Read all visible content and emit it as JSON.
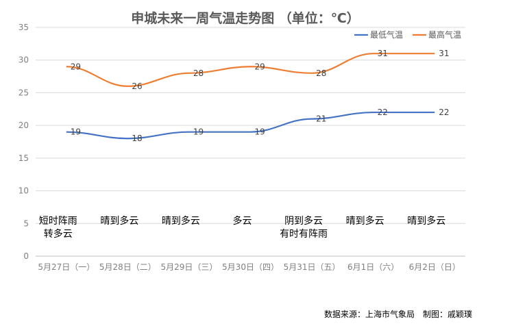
{
  "chart_data": {
    "type": "line",
    "title": "申城未来一周气温走势图 （单位：℃）",
    "categories": [
      "5月27日（一）",
      "5月28日（二）",
      "5月29日（三）",
      "5月30日（四）",
      "5月31日（五）",
      "6月1日（六）",
      "6月2日（日）"
    ],
    "ylim": [
      0,
      35
    ],
    "yticks": [
      0,
      5,
      10,
      15,
      20,
      25,
      30,
      35
    ],
    "grid": true,
    "legend_position": "top-right",
    "series": [
      {
        "name": "最低气温",
        "color": "#4472c4",
        "values": [
          19,
          18,
          19,
          19,
          21,
          22,
          22
        ]
      },
      {
        "name": "最高气温",
        "color": "#ed7d31",
        "values": [
          29,
          26,
          28,
          29,
          28,
          31,
          31
        ]
      }
    ],
    "weather": [
      [
        "短时阵雨",
        "转多云"
      ],
      [
        "晴到多云"
      ],
      [
        "晴到多云"
      ],
      [
        "多云"
      ],
      [
        "阴到多云",
        "有时有阵雨"
      ],
      [
        "晴到多云"
      ],
      [
        "晴到多云"
      ]
    ]
  },
  "footer": {
    "source": "数据来源：上海市气象局　制图：戚颖璞"
  }
}
